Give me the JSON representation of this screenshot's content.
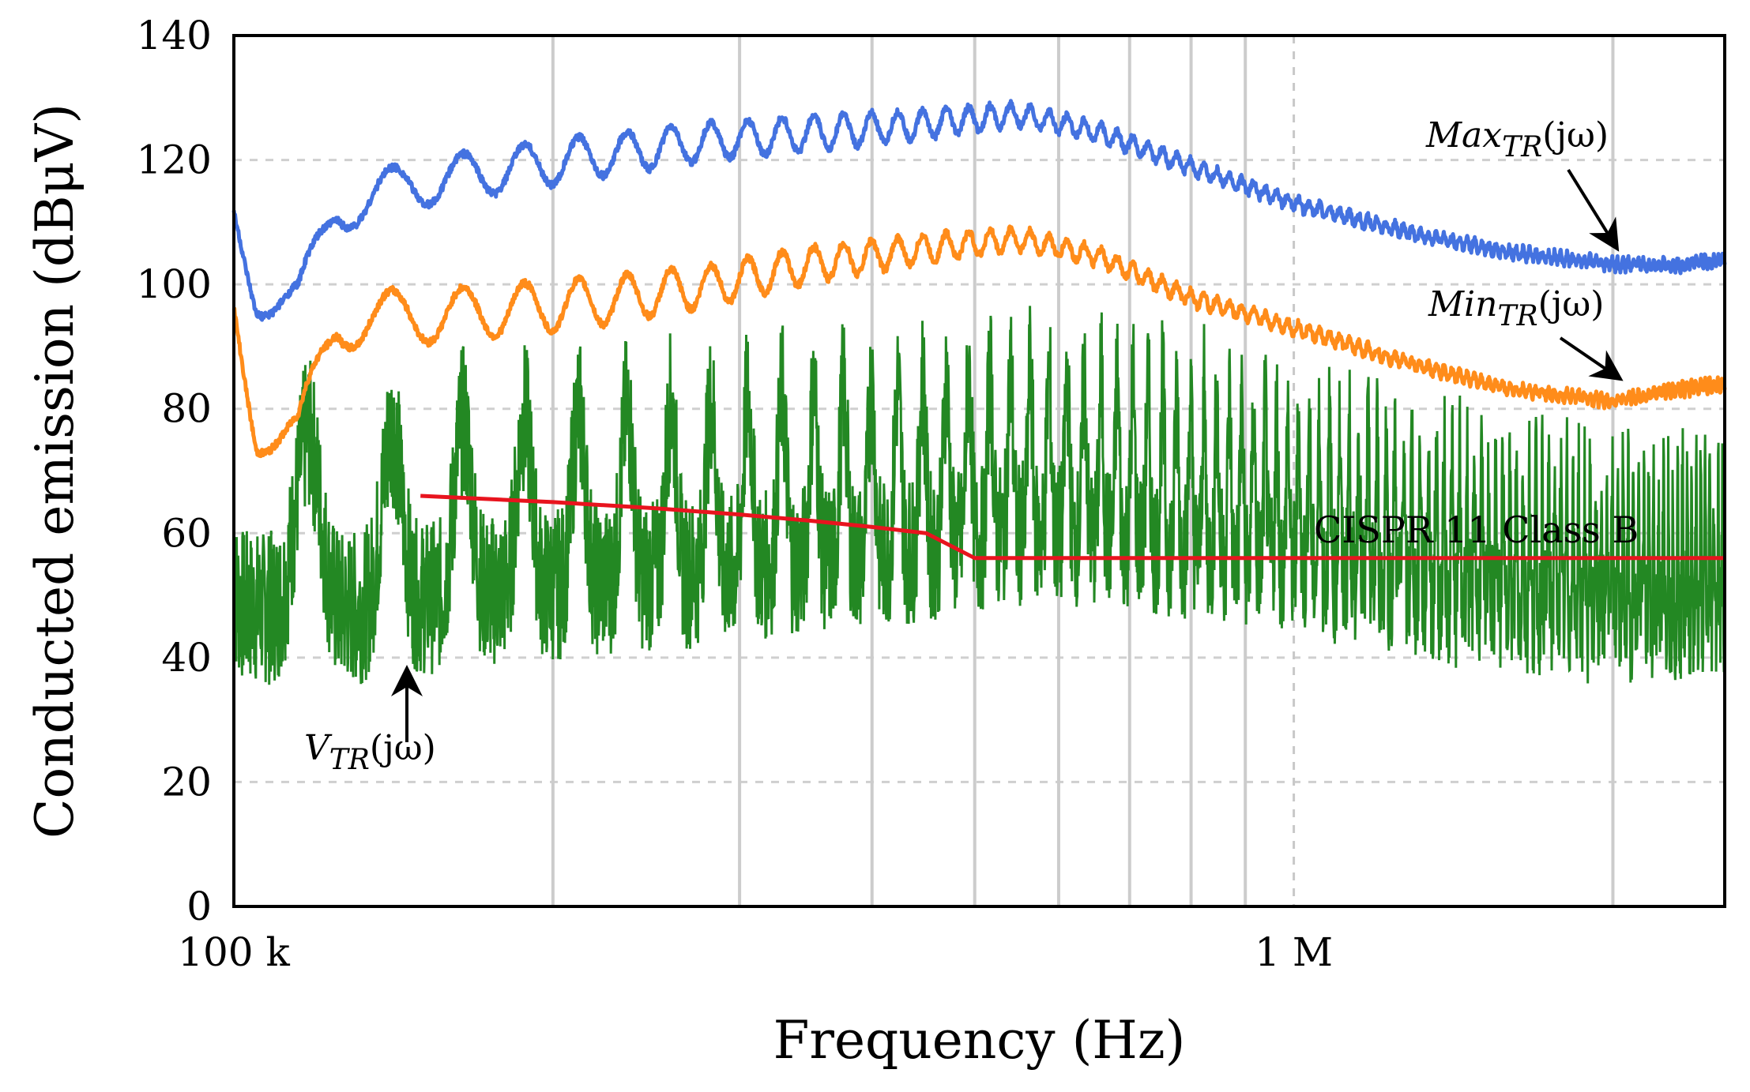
{
  "chart_data": {
    "type": "line",
    "xlabel": "Frequency (Hz)",
    "ylabel": "Conducted emission (dBμV)",
    "x_scale": "log",
    "xlim": [
      100000,
      2550000
    ],
    "ylim": [
      0,
      140
    ],
    "x_ticks": [
      {
        "value": 100000,
        "label": "100 k"
      },
      {
        "value": 1000000,
        "label": "1 M"
      }
    ],
    "y_ticks": [
      0,
      20,
      40,
      60,
      80,
      100,
      120,
      140
    ],
    "y_tick_labels": [
      "0",
      "20",
      "40",
      "60",
      "80",
      "100",
      "120",
      "140"
    ],
    "grid": true,
    "series": [
      {
        "key": "max",
        "color": "#4472e0",
        "envelope": [
          [
            100000,
            116
          ],
          [
            105000,
            103
          ],
          [
            115000,
            101
          ],
          [
            125000,
            116
          ],
          [
            135000,
            118
          ],
          [
            150000,
            120
          ],
          [
            180000,
            122
          ],
          [
            220000,
            124
          ],
          [
            280000,
            126
          ],
          [
            350000,
            127
          ],
          [
            450000,
            128
          ],
          [
            550000,
            129
          ],
          [
            650000,
            126
          ],
          [
            800000,
            120
          ],
          [
            1000000,
            114
          ],
          [
            1300000,
            109
          ],
          [
            1600000,
            106
          ],
          [
            2000000,
            104
          ],
          [
            2300000,
            104
          ],
          [
            2550000,
            105
          ]
        ],
        "oscillation": [
          [
            100000,
            8
          ],
          [
            200000,
            7
          ],
          [
            400000,
            5
          ],
          [
            600000,
            3
          ],
          [
            900000,
            2
          ],
          [
            2000000,
            1.5
          ],
          [
            2550000,
            2
          ]
        ]
      },
      {
        "key": "min",
        "color": "#ff8c1a",
        "envelope": [
          [
            100000,
            101
          ],
          [
            105000,
            82
          ],
          [
            115000,
            80
          ],
          [
            125000,
            98
          ],
          [
            135000,
            99
          ],
          [
            150000,
            99
          ],
          [
            180000,
            100
          ],
          [
            220000,
            101
          ],
          [
            280000,
            103
          ],
          [
            350000,
            106
          ],
          [
            450000,
            108
          ],
          [
            550000,
            109
          ],
          [
            650000,
            106
          ],
          [
            800000,
            99
          ],
          [
            1000000,
            94
          ],
          [
            1300000,
            88
          ],
          [
            1600000,
            84
          ],
          [
            2000000,
            82
          ],
          [
            2300000,
            84
          ],
          [
            2550000,
            85
          ]
        ],
        "oscillation": [
          [
            100000,
            9
          ],
          [
            200000,
            8
          ],
          [
            400000,
            5
          ],
          [
            600000,
            3
          ],
          [
            900000,
            2
          ],
          [
            2000000,
            1.5
          ],
          [
            2550000,
            2
          ]
        ]
      },
      {
        "key": "vtr",
        "color": "#238823",
        "envelope": [
          [
            100000,
            62
          ],
          [
            130000,
            62
          ],
          [
            160000,
            64
          ],
          [
            220000,
            66
          ],
          [
            300000,
            68
          ],
          [
            400000,
            70
          ],
          [
            550000,
            73
          ],
          [
            700000,
            72
          ],
          [
            1000000,
            67
          ],
          [
            1500000,
            60
          ],
          [
            2000000,
            57
          ],
          [
            2550000,
            58
          ]
        ],
        "oscillation": [
          [
            100000,
            28
          ],
          [
            400000,
            27
          ],
          [
            1000000,
            25
          ],
          [
            2550000,
            22
          ]
        ]
      },
      {
        "key": "limit",
        "color": "#e8141e",
        "points": [
          [
            150000,
            66
          ],
          [
            200000,
            65
          ],
          [
            250000,
            64
          ],
          [
            300000,
            63
          ],
          [
            350000,
            62
          ],
          [
            400000,
            61
          ],
          [
            450000,
            60
          ],
          [
            500000,
            56
          ],
          [
            2550000,
            56
          ]
        ]
      }
    ],
    "annotations": {
      "max": {
        "base": "Max",
        "sub": "TR",
        "func": "(jω)"
      },
      "min": {
        "base": "Min",
        "sub": "TR",
        "func": "(jω)"
      },
      "vtr": {
        "base": "V",
        "sub": "TR",
        "func": "(jω)"
      },
      "limit": {
        "text": "CISPR 11 Class B"
      }
    }
  }
}
